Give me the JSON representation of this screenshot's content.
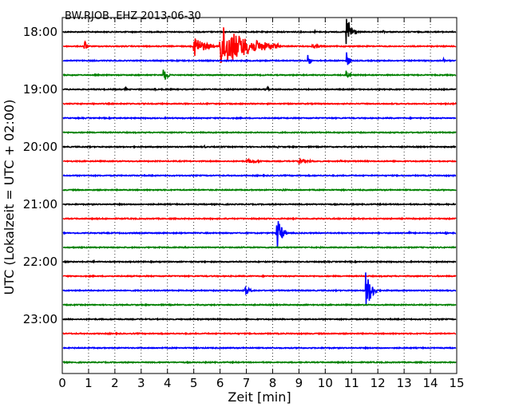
{
  "chart_data": {
    "type": "line",
    "title": "BW.RJOB..EHZ 2013-06-30",
    "xlabel": "Zeit  [min]",
    "ylabel": "UTC (Lokalzeit = UTC + 02:00)",
    "xlim": [
      0,
      15
    ],
    "x_ticks": [
      "0",
      "1",
      "2",
      "3",
      "4",
      "5",
      "6",
      "7",
      "8",
      "9",
      "10",
      "11",
      "12",
      "13",
      "14",
      "15"
    ],
    "y_tick_labels": [
      "18:00",
      "19:00",
      "20:00",
      "21:00",
      "22:00",
      "23:00"
    ],
    "grid": "vertical dotted",
    "row_minutes": 15,
    "start_time": "18:00",
    "colors": [
      "#000000",
      "#ff0000",
      "#0000ff",
      "#008000"
    ],
    "traces": [
      {
        "label": "18:00",
        "events": [
          {
            "t": 10.8,
            "amp": 22,
            "dur": 0.4
          },
          {
            "t": 9.6,
            "amp": 2,
            "dur": 0.2
          },
          {
            "t": 12.2,
            "amp": 2,
            "dur": 0.2
          }
        ]
      },
      {
        "label": "18:15",
        "events": [
          {
            "t": 0.85,
            "amp": 9,
            "dur": 0.15
          },
          {
            "t": 5.0,
            "amp": 15,
            "dur": 0.8
          },
          {
            "t": 6.0,
            "amp": 28,
            "dur": 2.2
          },
          {
            "t": 7.0,
            "amp": 6,
            "dur": 1.5
          },
          {
            "t": 9.5,
            "amp": 2,
            "dur": 1.0
          }
        ]
      },
      {
        "label": "18:30",
        "events": [
          {
            "t": 9.35,
            "amp": 9,
            "dur": 0.15
          },
          {
            "t": 10.8,
            "amp": 12,
            "dur": 0.2
          },
          {
            "t": 14.5,
            "amp": 3,
            "dur": 0.1
          }
        ]
      },
      {
        "label": "18:45",
        "events": [
          {
            "t": 3.85,
            "amp": 10,
            "dur": 0.3
          },
          {
            "t": 10.8,
            "amp": 8,
            "dur": 0.2
          }
        ]
      },
      {
        "label": "19:00",
        "events": [
          {
            "t": 2.4,
            "amp": 3,
            "dur": 0.1
          },
          {
            "t": 3.5,
            "amp": 3,
            "dur": 0.1
          },
          {
            "t": 7.8,
            "amp": 4,
            "dur": 0.1
          }
        ]
      },
      {
        "label": "19:15",
        "events": []
      },
      {
        "label": "19:30",
        "events": []
      },
      {
        "label": "19:45",
        "events": []
      },
      {
        "label": "20:00",
        "events": [
          {
            "t": 5.4,
            "amp": 2,
            "dur": 0.1
          },
          {
            "t": 8.2,
            "amp": 1.5,
            "dur": 0.1
          }
        ]
      },
      {
        "label": "20:15",
        "events": [
          {
            "t": 7.0,
            "amp": 3,
            "dur": 1.0
          },
          {
            "t": 9.0,
            "amp": 3,
            "dur": 1.0
          },
          {
            "t": 10.6,
            "amp": 1.5,
            "dur": 0.1
          }
        ]
      },
      {
        "label": "20:30",
        "events": []
      },
      {
        "label": "20:45",
        "events": [
          {
            "t": 8.4,
            "amp": 2,
            "dur": 0.2
          }
        ]
      },
      {
        "label": "21:00",
        "events": [
          {
            "t": 14.0,
            "amp": 1,
            "dur": 0.5
          }
        ]
      },
      {
        "label": "21:15",
        "events": []
      },
      {
        "label": "21:30",
        "events": [
          {
            "t": 8.15,
            "amp": 22,
            "dur": 0.4
          },
          {
            "t": 13.2,
            "amp": 1.5,
            "dur": 0.2
          },
          {
            "t": 14.6,
            "amp": 2,
            "dur": 0.1
          }
        ]
      },
      {
        "label": "21:45",
        "events": [
          {
            "t": 1.5,
            "amp": 1.5,
            "dur": 0.1
          }
        ]
      },
      {
        "label": "22:00",
        "events": [
          {
            "t": 1.2,
            "amp": 1.5,
            "dur": 0.1
          }
        ]
      },
      {
        "label": "22:15",
        "events": []
      },
      {
        "label": "22:30",
        "events": [
          {
            "t": 6.95,
            "amp": 7,
            "dur": 0.3
          },
          {
            "t": 11.55,
            "amp": 26,
            "dur": 0.4
          }
        ]
      },
      {
        "label": "22:45",
        "events": []
      },
      {
        "label": "23:00",
        "events": []
      },
      {
        "label": "23:15",
        "events": []
      },
      {
        "label": "23:30",
        "events": []
      },
      {
        "label": "23:45",
        "events": []
      }
    ]
  }
}
